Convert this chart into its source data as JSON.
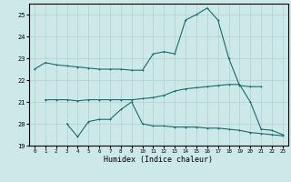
{
  "xlabel": "Humidex (Indice chaleur)",
  "xlim": [
    -0.5,
    23.5
  ],
  "ylim": [
    19,
    25.5
  ],
  "yticks": [
    19,
    20,
    21,
    22,
    23,
    24,
    25
  ],
  "xticks": [
    0,
    1,
    2,
    3,
    4,
    5,
    6,
    7,
    8,
    9,
    10,
    11,
    12,
    13,
    14,
    15,
    16,
    17,
    18,
    19,
    20,
    21,
    22,
    23
  ],
  "background_color": "#cce8e8",
  "grid_color": "#b0d0d0",
  "line_color": "#1a6b6b",
  "line1": [
    22.5,
    22.8,
    22.7,
    22.65,
    22.6,
    22.55,
    22.5,
    22.5,
    22.5,
    22.45,
    22.45,
    23.2,
    23.3,
    23.2,
    24.75,
    25.0,
    25.3,
    24.75,
    23.0,
    21.75,
    21.7,
    21.7,
    null,
    null
  ],
  "line2": [
    null,
    21.1,
    21.1,
    21.1,
    21.05,
    21.1,
    21.1,
    21.1,
    21.1,
    21.1,
    21.15,
    21.2,
    21.3,
    21.5,
    21.6,
    21.65,
    21.7,
    21.75,
    21.8,
    21.8,
    21.0,
    19.75,
    19.7,
    19.5
  ],
  "line3": [
    null,
    null,
    null,
    20.0,
    19.4,
    20.1,
    20.2,
    20.2,
    20.65,
    21.0,
    20.0,
    19.9,
    19.9,
    19.85,
    19.85,
    19.85,
    19.8,
    19.8,
    19.75,
    19.7,
    19.6,
    19.55,
    19.5,
    19.45
  ]
}
